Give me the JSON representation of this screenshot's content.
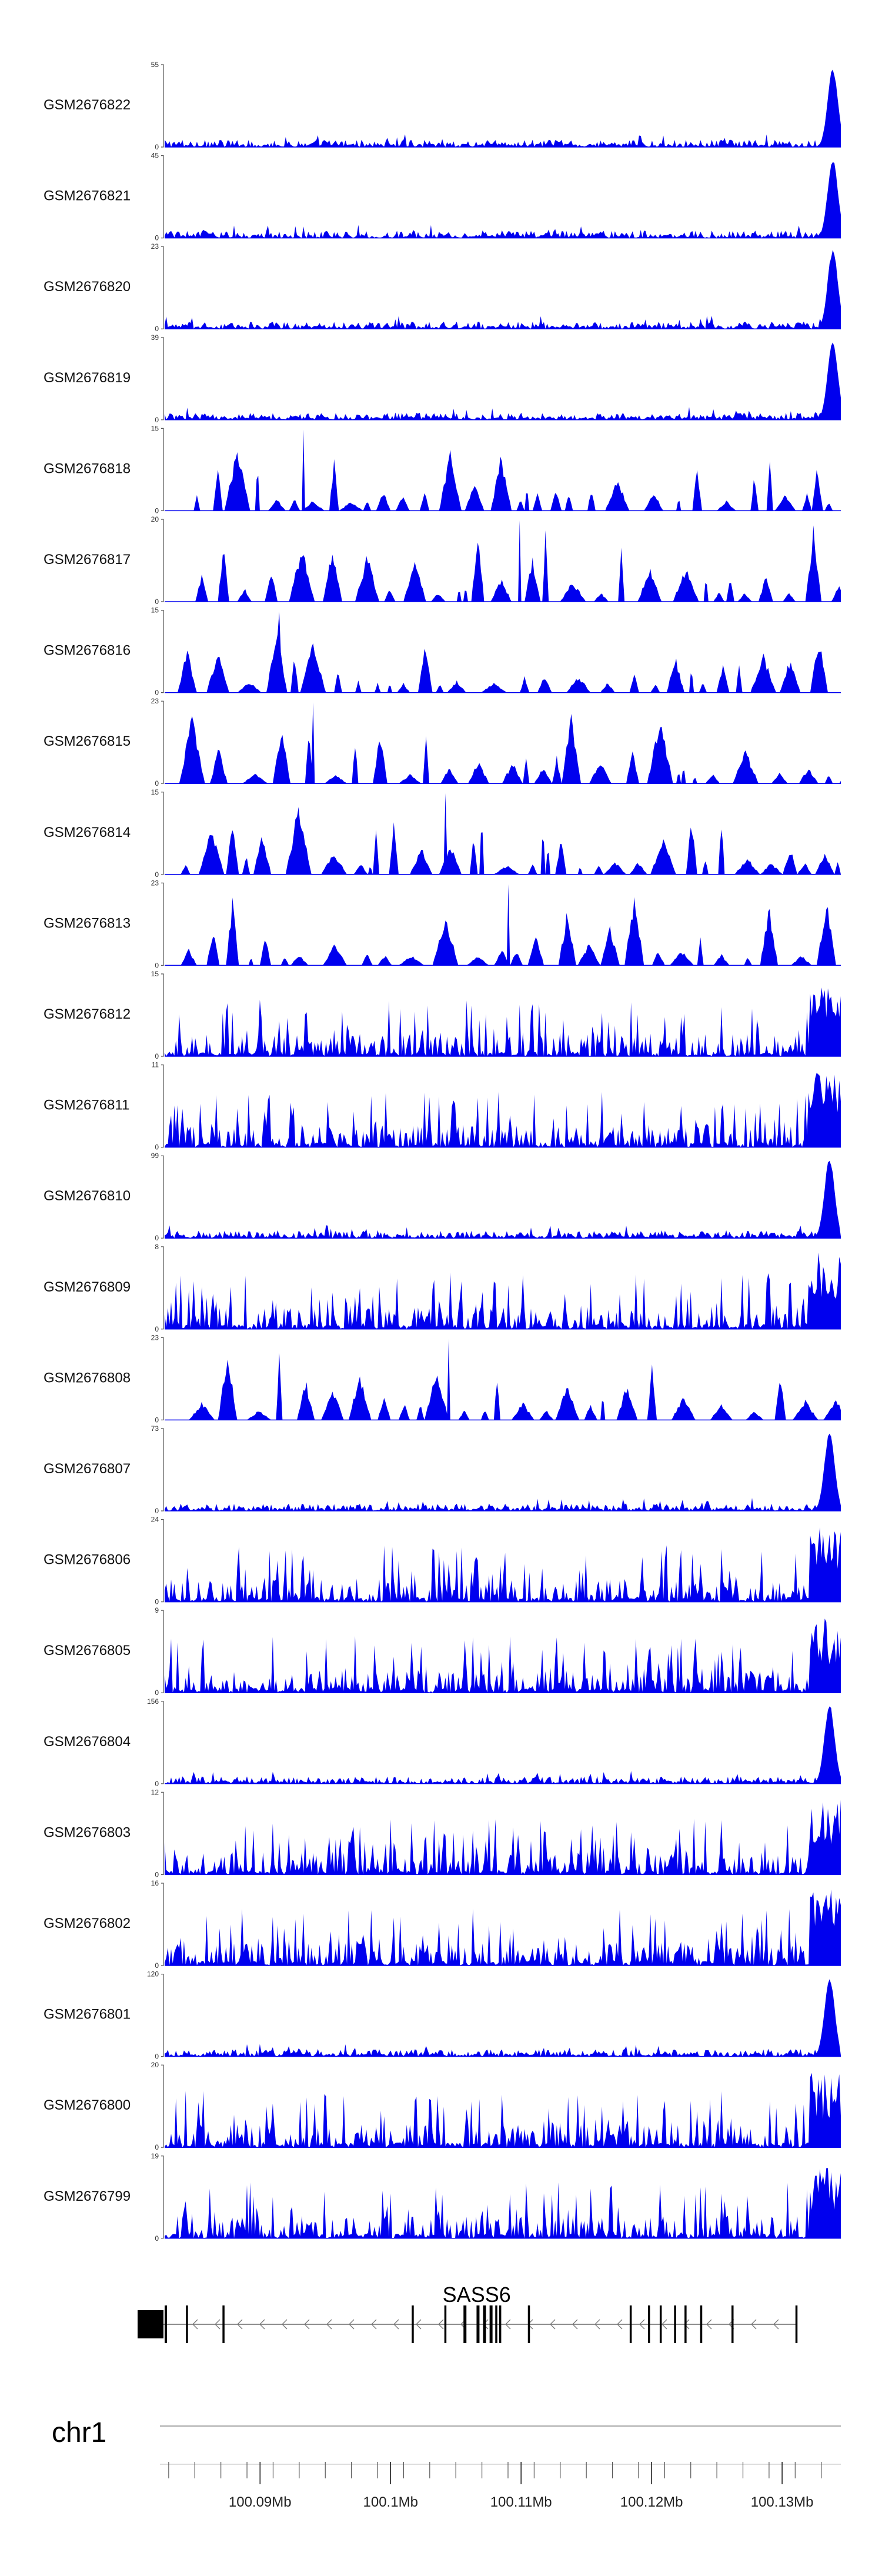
{
  "chart_data": {
    "type": "area",
    "title": "",
    "color": "#0000ee",
    "chromosome": "chr1",
    "x_axis": {
      "unit": "Mb",
      "range_mb": [
        100.0826,
        100.1345
      ],
      "tick_labels": [
        "100.09Mb",
        "100.1Mb",
        "100.11Mb",
        "100.12Mb",
        "100.13Mb"
      ],
      "tick_values_mb": [
        100.09,
        100.1,
        100.11,
        100.12,
        100.13
      ]
    },
    "gene": {
      "name": "SASS6",
      "strand": "-",
      "start_mb": 100.0826,
      "end_mb": 100.1311,
      "exons_mb": [
        100.0826,
        100.0844,
        100.0872,
        100.1017,
        100.1042,
        100.1057,
        100.1067,
        100.1072,
        100.1077,
        100.1081,
        100.1084,
        100.1106,
        100.1184,
        100.1198,
        100.1207,
        100.1218,
        100.1226,
        100.1238,
        100.1262,
        100.1311
      ]
    },
    "tracks": [
      {
        "name": "GSM2676822",
        "ymax": 55,
        "peak_center": 0.985,
        "pattern": "dense"
      },
      {
        "name": "GSM2676821",
        "ymax": 45,
        "peak_center": 0.985,
        "pattern": "dense"
      },
      {
        "name": "GSM2676820",
        "ymax": 23,
        "peak_center": 0.985,
        "pattern": "dense"
      },
      {
        "name": "GSM2676819",
        "ymax": 39,
        "peak_center": 0.985,
        "pattern": "dense"
      },
      {
        "name": "GSM2676818",
        "ymax": 15,
        "peak_center": 0,
        "pattern": "sparse"
      },
      {
        "name": "GSM2676817",
        "ymax": 20,
        "peak_center": 0,
        "pattern": "sparse"
      },
      {
        "name": "GSM2676816",
        "ymax": 15,
        "peak_center": 0,
        "pattern": "sparse"
      },
      {
        "name": "GSM2676815",
        "ymax": 23,
        "peak_center": 0,
        "pattern": "sparse"
      },
      {
        "name": "GSM2676814",
        "ymax": 15,
        "peak_center": 0,
        "pattern": "sparse"
      },
      {
        "name": "GSM2676813",
        "ymax": 23,
        "peak_center": 0,
        "pattern": "sparse"
      },
      {
        "name": "GSM2676812",
        "ymax": 15,
        "peak_center": 0.98,
        "pattern": "medium"
      },
      {
        "name": "GSM2676811",
        "ymax": 11,
        "peak_center": 0.98,
        "pattern": "medium"
      },
      {
        "name": "GSM2676810",
        "ymax": 99,
        "peak_center": 0.98,
        "pattern": "dense"
      },
      {
        "name": "GSM2676809",
        "ymax": 8,
        "peak_center": 0.98,
        "pattern": "medium"
      },
      {
        "name": "GSM2676808",
        "ymax": 23,
        "peak_center": 0,
        "pattern": "sparse"
      },
      {
        "name": "GSM2676807",
        "ymax": 73,
        "peak_center": 0.98,
        "pattern": "dense"
      },
      {
        "name": "GSM2676806",
        "ymax": 24,
        "peak_center": 0.98,
        "pattern": "medium"
      },
      {
        "name": "GSM2676805",
        "ymax": 9,
        "peak_center": 0.98,
        "pattern": "medium"
      },
      {
        "name": "GSM2676804",
        "ymax": 156,
        "peak_center": 0.98,
        "pattern": "dense"
      },
      {
        "name": "GSM2676803",
        "ymax": 12,
        "peak_center": 0.98,
        "pattern": "medium"
      },
      {
        "name": "GSM2676802",
        "ymax": 16,
        "peak_center": 0.98,
        "pattern": "medium"
      },
      {
        "name": "GSM2676801",
        "ymax": 120,
        "peak_center": 0.98,
        "pattern": "dense"
      },
      {
        "name": "GSM2676800",
        "ymax": 20,
        "peak_center": 0.98,
        "pattern": "medium"
      },
      {
        "name": "GSM2676799",
        "ymax": 19,
        "peak_center": 0.98,
        "pattern": "medium"
      }
    ]
  }
}
